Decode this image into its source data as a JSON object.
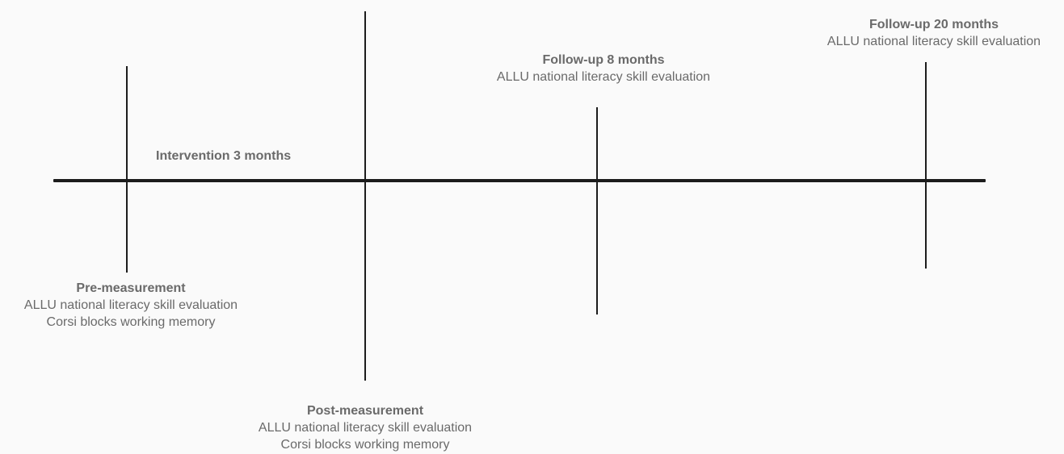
{
  "timeline": {
    "intervention": "Intervention 3 months",
    "pre": {
      "title": "Pre-measurement",
      "line1": "ALLU national literacy skill evaluation",
      "line2": "Corsi blocks working memory"
    },
    "post": {
      "title": "Post-measurement",
      "line1": "ALLU national literacy skill evaluation",
      "line2": "Corsi blocks working memory"
    },
    "followup8": {
      "title": "Follow-up 8 months",
      "line1": "ALLU national literacy skill evaluation"
    },
    "followup20": {
      "title": "Follow-up 20 months",
      "line1": "ALLU national literacy skill evaluation"
    }
  }
}
